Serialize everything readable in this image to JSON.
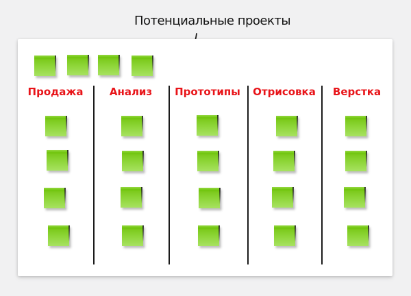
{
  "annotation": {
    "label": "Потенциальные проекты"
  },
  "board": {
    "backlog": {
      "notes_count": 4
    },
    "columns": [
      {
        "label": "Продажа",
        "notes_count": 4
      },
      {
        "label": "Анализ",
        "notes_count": 4
      },
      {
        "label": "Прототипы",
        "notes_count": 4
      },
      {
        "label": "Отрисовка",
        "notes_count": 4
      },
      {
        "label": "Верстка",
        "notes_count": 4
      }
    ]
  },
  "icons": {
    "arrow": "curved-arrow-pointing-to-backlog"
  },
  "colors": {
    "column_header": "#e81419",
    "note_top": "#6fc40c",
    "note_bottom": "#a7e261",
    "divider": "#1a1a1a",
    "board_bg": "#ffffff",
    "page_bg": "#f1f1f2",
    "annotation_text": "#141414"
  }
}
